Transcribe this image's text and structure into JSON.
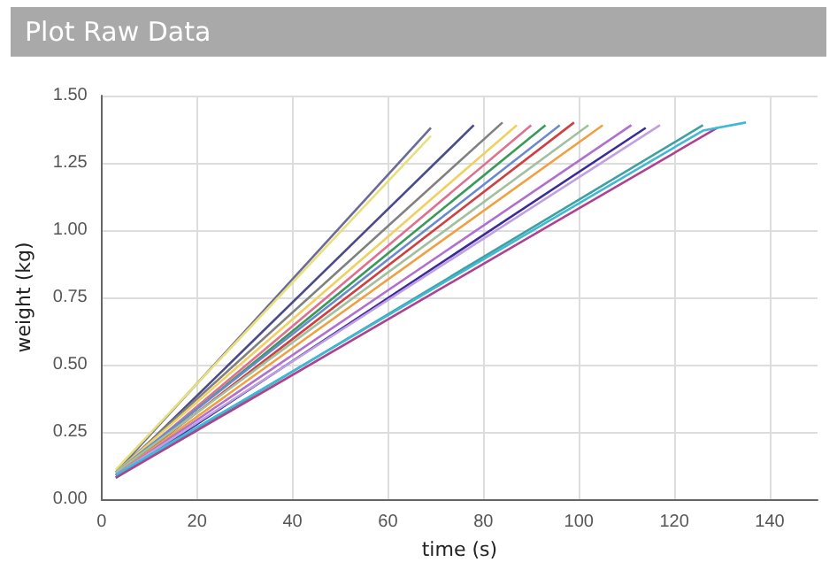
{
  "chart_data": {
    "type": "line",
    "title": "Plot Raw Data",
    "xlabel": "time (s)",
    "ylabel": "weight (kg)",
    "xlim": [
      0,
      150
    ],
    "xticks": [
      0,
      20,
      40,
      60,
      80,
      100,
      120,
      140
    ],
    "ylim": [
      0,
      1.5
    ],
    "yticks": [
      {
        "value": 0,
        "label": "0.00"
      },
      {
        "value": 0.25,
        "label": "0.25"
      },
      {
        "value": 0.5,
        "label": "0.50"
      },
      {
        "value": 0.75,
        "label": "0.75"
      },
      {
        "value": 1,
        "label": "1.00"
      },
      {
        "value": 1.25,
        "label": "1.25"
      },
      {
        "value": 1.5,
        "label": "1.50"
      }
    ],
    "grid": true,
    "marker": "none",
    "line_style": "solid",
    "series": [
      {
        "color": "#6b6b9a",
        "x": [
          3,
          69
        ],
        "values": [
          0.1,
          1.38
        ]
      },
      {
        "color": "#e8e07a",
        "x": [
          3,
          69
        ],
        "values": [
          0.11,
          1.35
        ]
      },
      {
        "color": "#4b4b8a",
        "x": [
          3,
          78
        ],
        "values": [
          0.09,
          1.39
        ]
      },
      {
        "color": "#808080",
        "x": [
          3,
          84
        ],
        "values": [
          0.1,
          1.4
        ]
      },
      {
        "color": "#f0d060",
        "x": [
          3,
          87
        ],
        "values": [
          0.1,
          1.39
        ]
      },
      {
        "color": "#e07090",
        "x": [
          3,
          90
        ],
        "values": [
          0.09,
          1.39
        ]
      },
      {
        "color": "#3a9a5a",
        "x": [
          3,
          93
        ],
        "values": [
          0.09,
          1.39
        ]
      },
      {
        "color": "#6a8ad0",
        "x": [
          3,
          96
        ],
        "values": [
          0.1,
          1.39
        ]
      },
      {
        "color": "#d04040",
        "x": [
          3,
          99
        ],
        "values": [
          0.09,
          1.4
        ]
      },
      {
        "color": "#a0c0a0",
        "x": [
          3,
          102
        ],
        "values": [
          0.1,
          1.39
        ]
      },
      {
        "color": "#f0a040",
        "x": [
          3,
          105
        ],
        "values": [
          0.09,
          1.39
        ]
      },
      {
        "color": "#b070d0",
        "x": [
          3,
          111
        ],
        "values": [
          0.09,
          1.39
        ]
      },
      {
        "color": "#3a2a9a",
        "x": [
          3,
          114
        ],
        "values": [
          0.08,
          1.38
        ]
      },
      {
        "color": "#c0a0e0",
        "x": [
          3,
          117
        ],
        "values": [
          0.09,
          1.39
        ]
      },
      {
        "color": "#40a0a0",
        "x": [
          3,
          126
        ],
        "values": [
          0.08,
          1.39
        ]
      },
      {
        "color": "#b04090",
        "x": [
          3,
          129
        ],
        "values": [
          0.08,
          1.38
        ]
      },
      {
        "color": "#40b8d8",
        "x": [
          3,
          126,
          135
        ],
        "values": [
          0.09,
          1.37,
          1.4
        ]
      }
    ]
  }
}
